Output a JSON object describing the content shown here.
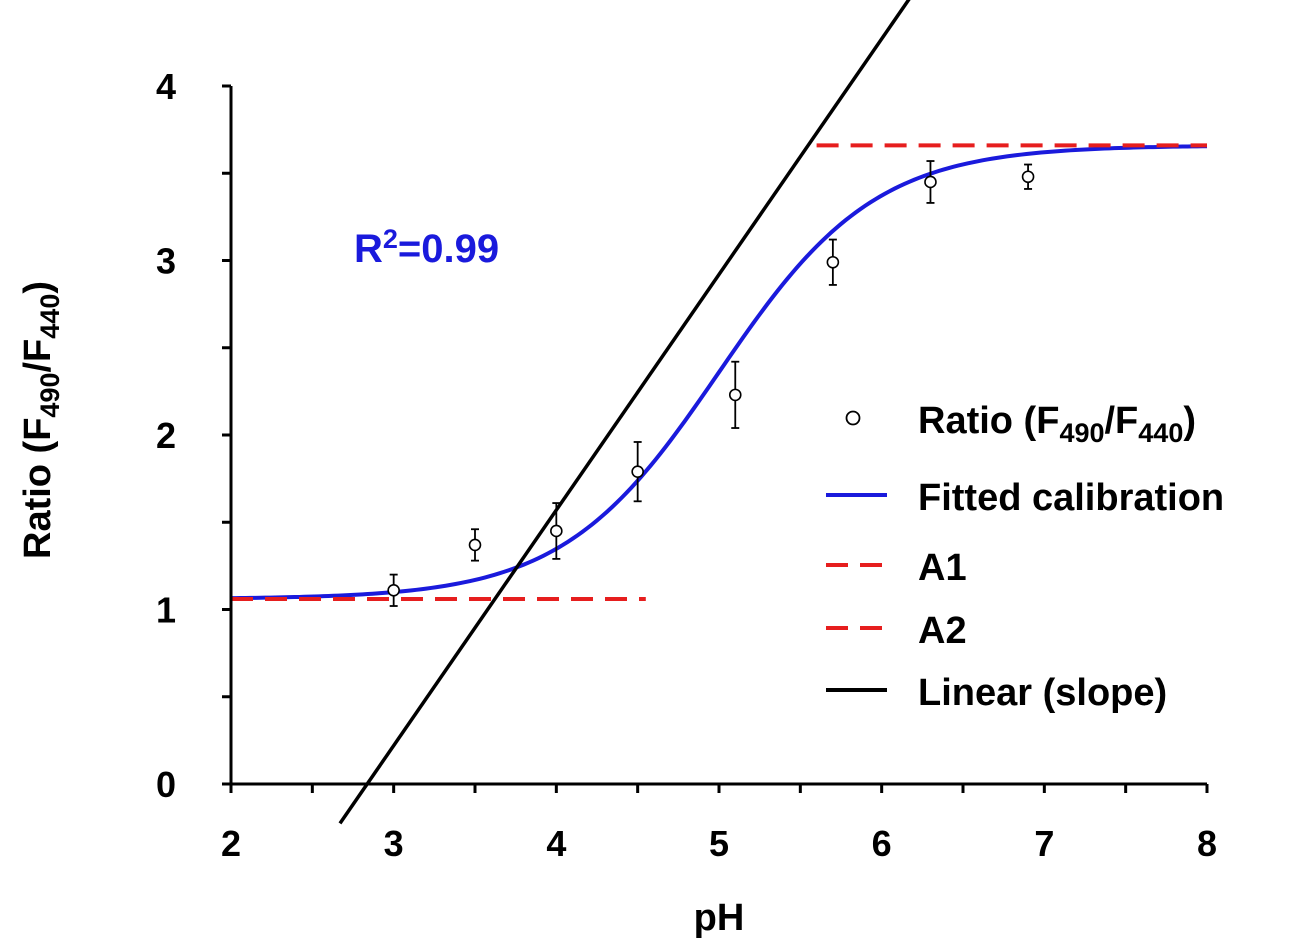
{
  "chart_data": {
    "type": "scatter",
    "title": "",
    "xlabel": "pH",
    "ylabel": {
      "main": "Ratio (F",
      "sub1": "490",
      "mid": "/F",
      "sub2": "440",
      "end": ")"
    },
    "xlim": [
      2,
      8
    ],
    "ylim": [
      0,
      4
    ],
    "xticks": [
      "2",
      "3",
      "4",
      "5",
      "6",
      "7",
      "8"
    ],
    "yticks": [
      "0",
      "1",
      "2",
      "3",
      "4"
    ],
    "annotation": {
      "r": "R",
      "sup": "2",
      "rest": "=0.99"
    },
    "series": [
      {
        "name": "Ratio (F490/F440)",
        "kind": "points",
        "x": [
          3.0,
          3.5,
          4.0,
          4.5,
          5.1,
          5.7,
          6.3,
          6.9
        ],
        "y": [
          1.11,
          1.37,
          1.45,
          1.79,
          2.23,
          2.99,
          3.45,
          3.48
        ],
        "err": [
          0.09,
          0.09,
          0.16,
          0.17,
          0.19,
          0.13,
          0.12,
          0.07
        ]
      },
      {
        "name": "Fitted calibration",
        "kind": "sigmoid",
        "A1": 1.06,
        "A2": 3.66,
        "x0": 5.0,
        "dx": 0.48,
        "xrange": [
          2,
          8
        ],
        "color": "#1a1adc"
      },
      {
        "name": "A1",
        "kind": "hline",
        "y": 1.06,
        "xrange": [
          2,
          4.55
        ],
        "color": "#e61e1e"
      },
      {
        "name": "A2",
        "kind": "hline",
        "y": 3.66,
        "xrange": [
          5.6,
          8
        ],
        "color": "#e61e1e"
      },
      {
        "name": "Linear (slope)",
        "kind": "line",
        "slope": 1.35,
        "intercept": -3.83,
        "xrange": [
          2.67,
          7.05
        ],
        "color": "#000000"
      }
    ],
    "legend": {
      "position": "right",
      "items": [
        {
          "text": "Ratio (F",
          "sub1": "490",
          "mid": "/F",
          "sub2": "440",
          "end": ")",
          "symbol": "circle"
        },
        {
          "text": "Fitted calibration",
          "symbol": "line",
          "color": "#1a1adc"
        },
        {
          "text": "A1",
          "symbol": "dash",
          "color": "#e61e1e"
        },
        {
          "text": "A2",
          "symbol": "dash",
          "color": "#e61e1e"
        },
        {
          "text": "Linear (slope)",
          "symbol": "line",
          "color": "#000000"
        }
      ]
    },
    "colors": {
      "annotation": "#1a1adc",
      "axis": "#000000"
    }
  }
}
